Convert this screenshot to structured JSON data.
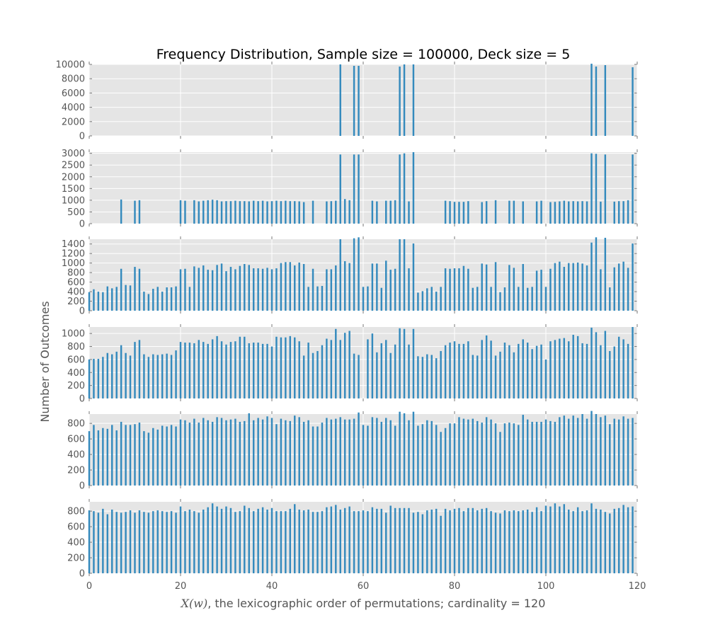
{
  "chart_data": {
    "type": "bar",
    "title": "Frequency Distribution, Sample size = 100000, Deck size = 5",
    "xlabel_math": "X(w)",
    "xlabel_rest": ", the lexicographic order of permutations; cardinality = 120",
    "ylabel": "Number of Outcomes",
    "xlim": [
      0,
      120
    ],
    "x_ticks": [
      "0",
      "20",
      "40",
      "60",
      "80",
      "100",
      "120"
    ],
    "grid": true,
    "bar_color": "#348abd",
    "panel_background": "#e5e5e5",
    "panels": [
      {
        "ylim": [
          0,
          10000
        ],
        "y_ticks": [
          "0",
          "2000",
          "4000",
          "6000",
          "8000",
          "10000"
        ],
        "values": [
          0,
          0,
          0,
          0,
          0,
          0,
          0,
          0,
          0,
          0,
          0,
          0,
          0,
          0,
          0,
          0,
          0,
          0,
          0,
          0,
          0,
          0,
          0,
          0,
          0,
          0,
          0,
          0,
          0,
          0,
          0,
          0,
          0,
          0,
          0,
          0,
          0,
          0,
          0,
          0,
          0,
          0,
          0,
          0,
          0,
          0,
          0,
          0,
          0,
          0,
          0,
          0,
          0,
          0,
          0,
          10000,
          0,
          0,
          9800,
          9800,
          0,
          0,
          0,
          0,
          0,
          0,
          0,
          0,
          9700,
          10000,
          0,
          10000,
          0,
          0,
          0,
          0,
          0,
          0,
          0,
          0,
          0,
          0,
          0,
          0,
          0,
          0,
          0,
          0,
          0,
          0,
          0,
          0,
          0,
          0,
          0,
          0,
          0,
          0,
          0,
          0,
          0,
          0,
          0,
          0,
          0,
          0,
          0,
          0,
          0,
          0,
          10100,
          9700,
          0,
          9900,
          0,
          0,
          0,
          0,
          0,
          9600
        ]
      },
      {
        "ylim": [
          0,
          3050
        ],
        "y_ticks": [
          "0",
          "500",
          "1000",
          "1500",
          "2000",
          "2500",
          "3000"
        ],
        "values": [
          0,
          0,
          0,
          0,
          0,
          0,
          0,
          1030,
          0,
          0,
          980,
          1000,
          0,
          0,
          0,
          0,
          0,
          0,
          0,
          0,
          1000,
          980,
          0,
          1000,
          950,
          980,
          1000,
          1020,
          1000,
          950,
          960,
          960,
          980,
          960,
          960,
          950,
          980,
          960,
          980,
          950,
          960,
          980,
          960,
          980,
          960,
          960,
          950,
          920,
          0,
          980,
          0,
          0,
          950,
          960,
          980,
          2950,
          1050,
          1000,
          2950,
          2950,
          0,
          0,
          980,
          950,
          0,
          980,
          980,
          1000,
          2950,
          3000,
          950,
          3050,
          0,
          0,
          0,
          0,
          0,
          0,
          980,
          960,
          930,
          930,
          930,
          960,
          0,
          0,
          920,
          960,
          0,
          1000,
          0,
          0,
          980,
          980,
          0,
          950,
          0,
          0,
          950,
          980,
          0,
          920,
          930,
          950,
          980,
          950,
          960,
          950,
          960,
          950,
          3000,
          2980,
          940,
          2950,
          0,
          940,
          960,
          960,
          1000,
          2950
        ]
      },
      {
        "ylim": [
          0,
          1500
        ],
        "y_ticks": [
          "0",
          "200",
          "400",
          "600",
          "800",
          "1000",
          "1200",
          "1400"
        ],
        "values": [
          390,
          450,
          400,
          390,
          510,
          470,
          500,
          880,
          540,
          530,
          920,
          880,
          400,
          350,
          460,
          500,
          400,
          490,
          490,
          510,
          870,
          880,
          500,
          930,
          900,
          950,
          860,
          850,
          960,
          990,
          830,
          920,
          870,
          940,
          980,
          960,
          890,
          890,
          880,
          900,
          870,
          890,
          1000,
          1020,
          1020,
          950,
          1010,
          980,
          500,
          880,
          510,
          520,
          870,
          870,
          950,
          1500,
          1040,
          1000,
          1520,
          1540,
          500,
          510,
          990,
          990,
          480,
          1050,
          860,
          880,
          1500,
          1500,
          890,
          1410,
          380,
          410,
          470,
          500,
          400,
          500,
          890,
          880,
          890,
          890,
          940,
          880,
          480,
          500,
          990,
          970,
          500,
          1020,
          390,
          490,
          960,
          900,
          500,
          980,
          480,
          500,
          840,
          860,
          500,
          880,
          1000,
          1030,
          920,
          1000,
          1000,
          1010,
          990,
          950,
          1430,
          1540,
          870,
          1530,
          490,
          910,
          990,
          1030,
          900,
          1410
        ]
      },
      {
        "ylim": [
          0,
          1100
        ],
        "y_ticks": [
          "0",
          "200",
          "400",
          "600",
          "800",
          "1000"
        ],
        "values": [
          600,
          610,
          610,
          640,
          700,
          680,
          720,
          820,
          700,
          660,
          870,
          900,
          680,
          640,
          680,
          670,
          680,
          690,
          670,
          740,
          870,
          860,
          860,
          850,
          900,
          870,
          840,
          910,
          960,
          880,
          830,
          870,
          880,
          950,
          950,
          850,
          860,
          860,
          840,
          840,
          800,
          950,
          940,
          940,
          960,
          940,
          880,
          660,
          860,
          700,
          730,
          820,
          920,
          900,
          1070,
          900,
          1010,
          1040,
          690,
          670,
          0,
          910,
          1000,
          710,
          850,
          900,
          700,
          830,
          1080,
          1070,
          830,
          1070,
          650,
          640,
          680,
          670,
          620,
          730,
          820,
          860,
          880,
          840,
          840,
          880,
          670,
          660,
          900,
          970,
          890,
          660,
          720,
          860,
          820,
          710,
          840,
          910,
          860,
          760,
          810,
          830,
          600,
          880,
          900,
          920,
          930,
          880,
          980,
          960,
          850,
          840,
          1090,
          1020,
          820,
          1040,
          730,
          800,
          950,
          910,
          840,
          1100
        ]
      },
      {
        "ylim": [
          0,
          920
        ],
        "y_ticks": [
          "0",
          "200",
          "400",
          "600",
          "800"
        ],
        "values": [
          700,
          780,
          710,
          740,
          730,
          780,
          710,
          820,
          780,
          780,
          790,
          810,
          700,
          680,
          740,
          720,
          770,
          760,
          780,
          760,
          850,
          840,
          810,
          860,
          810,
          870,
          840,
          820,
          880,
          870,
          840,
          850,
          860,
          820,
          830,
          930,
          840,
          870,
          850,
          890,
          870,
          790,
          860,
          840,
          830,
          900,
          880,
          820,
          840,
          760,
          760,
          810,
          870,
          850,
          860,
          880,
          850,
          850,
          860,
          940,
          780,
          770,
          880,
          870,
          820,
          870,
          840,
          770,
          950,
          930,
          840,
          950,
          770,
          790,
          840,
          830,
          780,
          690,
          740,
          800,
          800,
          880,
          860,
          850,
          860,
          830,
          810,
          880,
          850,
          800,
          690,
          800,
          810,
          800,
          780,
          910,
          850,
          820,
          820,
          820,
          850,
          830,
          820,
          880,
          900,
          860,
          900,
          870,
          920,
          860,
          960,
          920,
          880,
          900,
          790,
          860,
          850,
          890,
          860,
          870
        ]
      },
      {
        "ylim": [
          0,
          920
        ],
        "y_ticks": [
          "0",
          "200",
          "400",
          "600",
          "800"
        ],
        "values": [
          810,
          800,
          780,
          830,
          760,
          820,
          790,
          780,
          790,
          810,
          780,
          810,
          790,
          780,
          800,
          810,
          800,
          790,
          800,
          780,
          860,
          800,
          820,
          800,
          780,
          820,
          850,
          900,
          860,
          830,
          860,
          840,
          790,
          800,
          870,
          840,
          800,
          830,
          850,
          820,
          840,
          800,
          800,
          800,
          830,
          890,
          820,
          810,
          820,
          790,
          790,
          800,
          850,
          860,
          880,
          820,
          840,
          860,
          800,
          800,
          810,
          800,
          850,
          830,
          830,
          780,
          870,
          840,
          840,
          840,
          840,
          780,
          790,
          760,
          810,
          820,
          830,
          740,
          830,
          810,
          830,
          840,
          800,
          840,
          840,
          810,
          830,
          840,
          800,
          780,
          770,
          810,
          800,
          810,
          800,
          810,
          820,
          790,
          850,
          800,
          870,
          860,
          900,
          860,
          890,
          820,
          800,
          850,
          800,
          810,
          900,
          830,
          820,
          790,
          770,
          830,
          840,
          880,
          850,
          860
        ]
      }
    ]
  }
}
